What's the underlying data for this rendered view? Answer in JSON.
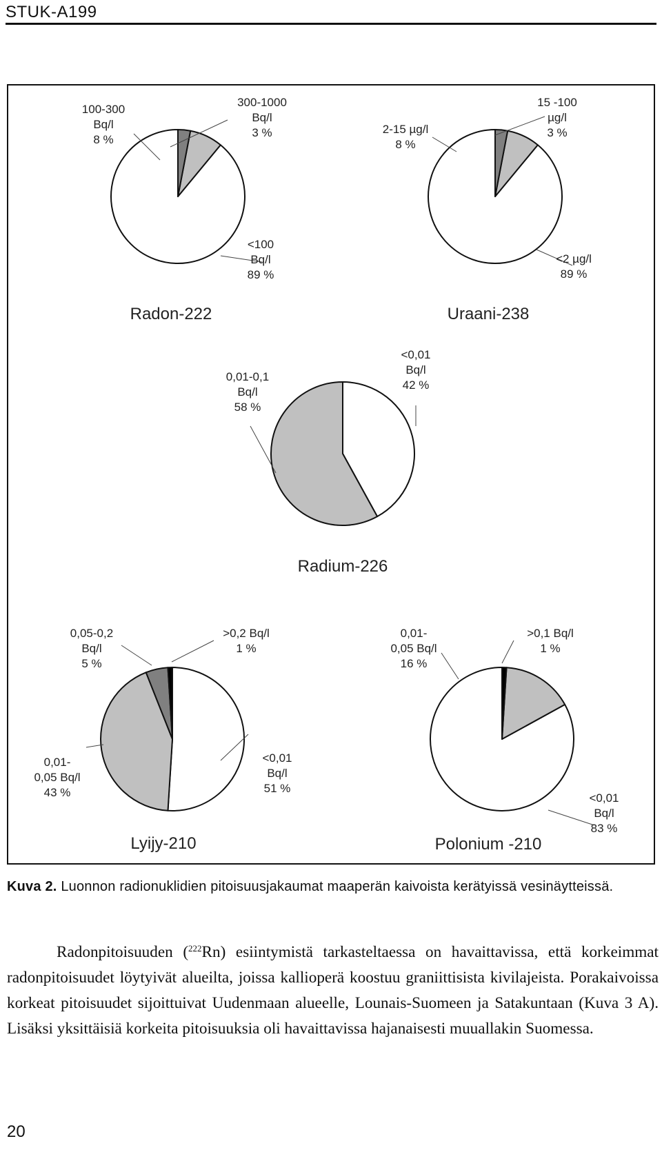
{
  "header": {
    "title": "STUK-A199"
  },
  "colors": {
    "light": "#ffffff",
    "medium": "#c0c0c0",
    "dark": "#808080",
    "black": "#000000"
  },
  "chart_data": [
    {
      "type": "pie",
      "title": "Radon-222",
      "slices": [
        {
          "label": "<100\nBq/l\n89 %",
          "value": 89,
          "color": "light"
        },
        {
          "label": "100-300\nBq/l\n8 %",
          "value": 8,
          "color": "medium"
        },
        {
          "label": "300-1000\nBq/l\n3 %",
          "value": 3,
          "color": "dark"
        }
      ]
    },
    {
      "type": "pie",
      "title": "Uraani-238",
      "slices": [
        {
          "label": "<2 µg/l\n89 %",
          "value": 89,
          "color": "light"
        },
        {
          "label": "2-15 µg/l\n8 %",
          "value": 8,
          "color": "medium"
        },
        {
          "label": "15 -100\nµg/l\n3 %",
          "value": 3,
          "color": "dark"
        }
      ]
    },
    {
      "type": "pie",
      "title": "Radium-226",
      "slices": [
        {
          "label": "<0,01\nBq/l\n42 %",
          "value": 42,
          "color": "light"
        },
        {
          "label": "0,01-0,1\nBq/l\n58 %",
          "value": 58,
          "color": "medium"
        }
      ]
    },
    {
      "type": "pie",
      "title": "Lyijy-210",
      "slices": [
        {
          "label": "<0,01\nBq/l\n51 %",
          "value": 51,
          "color": "light"
        },
        {
          "label": "0,01-\n0,05 Bq/l\n43 %",
          "value": 43,
          "color": "medium"
        },
        {
          "label": "0,05-0,2\nBq/l\n5 %",
          "value": 5,
          "color": "dark"
        },
        {
          "label": ">0,2 Bq/l\n1 %",
          "value": 1,
          "color": "black"
        }
      ]
    },
    {
      "type": "pie",
      "title": "Polonium -210",
      "slices": [
        {
          "label": "<0,01\nBq/l\n83 %",
          "value": 83,
          "color": "light"
        },
        {
          "label": "0,01-\n0,05 Bq/l\n16 %",
          "value": 16,
          "color": "medium"
        },
        {
          "label": ">0,1 Bq/l\n1 %",
          "value": 1,
          "color": "black"
        }
      ]
    }
  ],
  "caption": {
    "label": "Kuva 2.",
    "text": "Luonnon radionuklidien pitoisuusjakaumat maaperän kaivoista kerätyissä vesinäytteissä."
  },
  "body": {
    "before": "Radonpitoisuuden (",
    "superscript": "222",
    "after": "Rn) esiintymistä tarkasteltaessa on havaittavissa, että korkeimmat radonpitoisuudet löytyivät alueilta, joissa kallioperä koostuu graniittisista kivilajeista. Porakaivoissa korkeat pitoisuudet sijoittuivat Uudenmaan alueelle, Lounais-Suomeen ja Satakuntaan (Kuva 3 A). Lisäksi yksittäisiä korkeita pitoisuuksia oli havaittavissa hajanaisesti muuallakin Suomessa."
  },
  "page_number": "20"
}
